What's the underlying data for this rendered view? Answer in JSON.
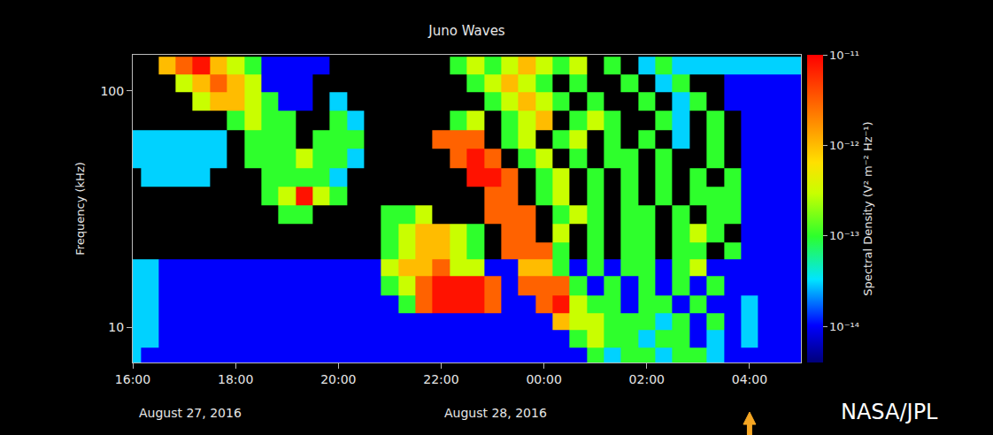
{
  "chart_data": {
    "type": "heatmap",
    "title": "Juno Waves",
    "y_label": "Frequency (kHz)",
    "colorbar_label": "Spectral Density (V² m⁻² Hz⁻¹)",
    "annotations": [
      "August 27, 2016",
      "August 28, 2016",
      "NASA/JPL"
    ],
    "log": true,
    "grid": false,
    "x": [
      "2016-08-27 16:00",
      "2016-08-27 16:20",
      "2016-08-27 16:40",
      "2016-08-27 17:00",
      "2016-08-27 17:20",
      "2016-08-27 17:40",
      "2016-08-27 18:00",
      "2016-08-27 18:20",
      "2016-08-27 18:40",
      "2016-08-27 19:00",
      "2016-08-27 19:20",
      "2016-08-27 19:40",
      "2016-08-27 20:00",
      "2016-08-27 20:20",
      "2016-08-27 20:40",
      "2016-08-27 21:00",
      "2016-08-27 21:20",
      "2016-08-27 21:40",
      "2016-08-27 22:00",
      "2016-08-27 22:20",
      "2016-08-27 22:40",
      "2016-08-27 23:00",
      "2016-08-27 23:20",
      "2016-08-27 23:40",
      "2016-08-28 00:00",
      "2016-08-28 00:20",
      "2016-08-28 00:40",
      "2016-08-28 01:00",
      "2016-08-28 01:20",
      "2016-08-28 01:40",
      "2016-08-28 02:00",
      "2016-08-28 02:20",
      "2016-08-28 02:40",
      "2016-08-28 03:00",
      "2016-08-28 03:20",
      "2016-08-28 03:40",
      "2016-08-28 04:00",
      "2016-08-28 04:20",
      "2016-08-28 04:40",
      "2016-08-28 05:00"
    ],
    "y": [
      7.5,
      9,
      10.5,
      12.5,
      15,
      18,
      21,
      25,
      30,
      36,
      43,
      52,
      62,
      75,
      90,
      108,
      128
    ],
    "cells": [
      [
        3e-14,
        1e-14,
        1e-14,
        1e-14,
        1e-14,
        1e-14,
        1e-14,
        1e-14,
        1e-14,
        1e-14,
        1e-14,
        1e-14,
        1e-14,
        1e-14,
        1e-14,
        1e-14,
        1e-14,
        1e-14,
        1e-14,
        1e-14,
        1e-14,
        1e-14,
        1e-14,
        1e-14,
        1e-14,
        1e-14,
        1e-14,
        1e-13,
        3e-14,
        1e-13,
        1e-13,
        3e-14,
        1e-13,
        1e-13,
        3e-14,
        1e-14,
        1e-14,
        1e-14,
        1e-14,
        1e-14
      ],
      [
        3e-14,
        3e-14,
        1e-14,
        1e-14,
        1e-14,
        1e-14,
        1e-14,
        1e-14,
        1e-14,
        1e-14,
        1e-14,
        1e-14,
        1e-14,
        1e-14,
        1e-14,
        1e-14,
        1e-14,
        1e-14,
        1e-14,
        1e-14,
        1e-14,
        1e-14,
        1e-14,
        1e-14,
        1e-14,
        1e-14,
        1e-13,
        3e-13,
        1e-13,
        1e-13,
        3e-14,
        1e-13,
        1e-13,
        1e-14,
        3e-14,
        1e-14,
        3e-14,
        1e-14,
        1e-14,
        1e-14
      ],
      [
        3e-14,
        3e-14,
        1e-14,
        1e-14,
        1e-14,
        1e-14,
        1e-14,
        1e-14,
        1e-14,
        1e-14,
        1e-14,
        1e-14,
        1e-14,
        1e-14,
        1e-14,
        1e-14,
        1e-14,
        1e-14,
        1e-14,
        1e-14,
        1e-14,
        1e-14,
        1e-14,
        1e-14,
        1e-14,
        1e-12,
        3e-13,
        3e-13,
        1e-13,
        1e-13,
        1e-13,
        3e-14,
        1e-13,
        1e-14,
        1e-13,
        1e-14,
        3e-14,
        1e-14,
        1e-14,
        1e-14
      ],
      [
        3e-14,
        3e-14,
        1e-14,
        1e-14,
        1e-14,
        1e-14,
        1e-14,
        1e-14,
        1e-14,
        1e-14,
        1e-14,
        1e-14,
        1e-14,
        1e-14,
        1e-14,
        1e-14,
        1e-13,
        3e-12,
        8e-12,
        8e-12,
        8e-12,
        3e-12,
        1e-14,
        1e-14,
        3e-12,
        8e-12,
        3e-13,
        1e-13,
        1e-13,
        1e-14,
        1e-13,
        1e-13,
        1e-14,
        1e-13,
        1e-14,
        1e-14,
        3e-14,
        1e-14,
        1e-14,
        1e-14
      ],
      [
        3e-14,
        3e-14,
        1e-14,
        1e-14,
        1e-14,
        1e-14,
        1e-14,
        1e-14,
        1e-14,
        1e-14,
        1e-14,
        1e-14,
        1e-14,
        1e-14,
        1e-14,
        1e-13,
        3e-13,
        3e-12,
        8e-12,
        8e-12,
        8e-12,
        3e-12,
        1e-14,
        3e-12,
        3e-12,
        3e-12,
        1e-13,
        1e-14,
        1e-13,
        1e-14,
        1e-13,
        1e-14,
        1e-13,
        1e-14,
        1e-13,
        1e-14,
        1e-14,
        1e-14,
        1e-14,
        1e-14
      ],
      [
        3e-14,
        3e-14,
        1e-14,
        1e-14,
        1e-14,
        1e-14,
        1e-14,
        1e-14,
        1e-14,
        1e-14,
        1e-14,
        1e-14,
        1e-14,
        1e-14,
        1e-14,
        3e-13,
        1e-12,
        1e-12,
        3e-12,
        3e-13,
        3e-13,
        1e-14,
        1e-14,
        1e-12,
        1e-12,
        1e-13,
        1e-14,
        1e-13,
        1e-14,
        1e-13,
        1e-13,
        1e-14,
        1e-13,
        3e-13,
        1e-14,
        1e-14,
        1e-14,
        1e-14,
        1e-14,
        1e-14
      ],
      [
        null,
        null,
        null,
        null,
        null,
        null,
        null,
        null,
        null,
        null,
        null,
        null,
        null,
        null,
        null,
        1e-13,
        3e-13,
        1e-12,
        1e-12,
        3e-13,
        1e-13,
        null,
        3e-12,
        3e-12,
        3e-12,
        1e-13,
        null,
        1e-13,
        null,
        1e-13,
        1e-13,
        null,
        1e-13,
        1e-13,
        null,
        1e-13,
        1e-14,
        1e-14,
        1e-14,
        1e-14
      ],
      [
        null,
        null,
        null,
        null,
        null,
        null,
        null,
        null,
        null,
        null,
        null,
        null,
        null,
        null,
        null,
        1e-13,
        3e-13,
        1e-12,
        1e-12,
        3e-13,
        1e-13,
        null,
        3e-12,
        3e-12,
        null,
        3e-13,
        null,
        1e-13,
        null,
        1e-13,
        1e-13,
        null,
        1e-13,
        3e-13,
        1e-13,
        null,
        1e-14,
        1e-14,
        1e-14,
        1e-14
      ],
      [
        null,
        null,
        null,
        null,
        null,
        null,
        null,
        null,
        null,
        1e-13,
        1e-13,
        null,
        null,
        null,
        null,
        1e-13,
        1e-13,
        3e-13,
        null,
        null,
        null,
        3e-12,
        3e-12,
        3e-12,
        null,
        1e-13,
        3e-13,
        1e-13,
        null,
        1e-13,
        1e-13,
        null,
        1e-13,
        null,
        1e-13,
        1e-13,
        1e-14,
        1e-14,
        1e-14,
        1e-14
      ],
      [
        null,
        null,
        null,
        null,
        null,
        null,
        null,
        null,
        1e-13,
        3e-13,
        8e-12,
        3e-13,
        1e-13,
        null,
        null,
        null,
        null,
        null,
        null,
        null,
        null,
        3e-12,
        3e-12,
        null,
        1e-13,
        3e-13,
        null,
        1e-13,
        null,
        1e-13,
        null,
        1e-13,
        null,
        1e-13,
        1e-13,
        1e-13,
        1e-14,
        1e-14,
        1e-14,
        1e-14
      ],
      [
        null,
        3e-14,
        3e-14,
        3e-14,
        3e-14,
        null,
        null,
        null,
        1e-13,
        1e-13,
        1e-13,
        1e-13,
        3e-14,
        null,
        null,
        null,
        null,
        null,
        null,
        null,
        8e-12,
        8e-12,
        3e-12,
        null,
        1e-13,
        3e-13,
        null,
        1e-13,
        null,
        1e-13,
        null,
        1e-13,
        null,
        1e-13,
        null,
        1e-13,
        1e-14,
        1e-14,
        1e-14,
        1e-14
      ],
      [
        3e-14,
        3e-14,
        3e-14,
        3e-14,
        3e-14,
        3e-14,
        null,
        1e-13,
        1e-13,
        1e-13,
        3e-13,
        1e-13,
        1e-13,
        3e-14,
        null,
        null,
        null,
        null,
        null,
        3e-12,
        8e-12,
        3e-12,
        null,
        1e-13,
        3e-13,
        null,
        1e-13,
        null,
        1e-13,
        1e-13,
        null,
        1e-13,
        null,
        null,
        1e-13,
        null,
        1e-14,
        1e-14,
        1e-14,
        1e-14
      ],
      [
        3e-14,
        3e-14,
        3e-14,
        3e-14,
        3e-14,
        3e-14,
        null,
        1e-13,
        1e-13,
        1e-13,
        null,
        1e-13,
        1e-13,
        1e-13,
        null,
        null,
        null,
        null,
        3e-12,
        3e-12,
        3e-12,
        null,
        1e-13,
        3e-13,
        null,
        1e-13,
        3e-13,
        null,
        1e-13,
        null,
        1e-13,
        null,
        3e-14,
        null,
        1e-13,
        null,
        1e-14,
        1e-14,
        1e-14,
        1e-14
      ],
      [
        null,
        null,
        null,
        null,
        null,
        null,
        1e-13,
        3e-13,
        1e-13,
        1e-13,
        null,
        null,
        1e-13,
        3e-14,
        null,
        null,
        null,
        null,
        null,
        1e-13,
        3e-13,
        null,
        1e-13,
        3e-13,
        1e-12,
        null,
        1e-13,
        3e-13,
        1e-13,
        null,
        null,
        1e-13,
        3e-14,
        null,
        1e-13,
        null,
        1e-14,
        1e-14,
        1e-14,
        1e-14
      ],
      [
        null,
        null,
        null,
        null,
        3e-13,
        1e-12,
        1e-12,
        3e-13,
        1e-13,
        1e-14,
        1e-14,
        null,
        3e-14,
        null,
        null,
        null,
        null,
        null,
        null,
        null,
        null,
        1e-13,
        3e-13,
        1e-12,
        3e-13,
        1e-13,
        null,
        1e-13,
        null,
        null,
        1e-13,
        null,
        3e-14,
        1e-13,
        null,
        1e-14,
        1e-14,
        1e-14,
        1e-14,
        1e-14
      ],
      [
        null,
        null,
        null,
        3e-13,
        1e-12,
        3e-12,
        1e-12,
        3e-13,
        1e-14,
        1e-14,
        1e-14,
        null,
        null,
        null,
        null,
        null,
        null,
        null,
        null,
        null,
        1e-13,
        3e-13,
        1e-12,
        3e-13,
        1e-13,
        null,
        1e-13,
        null,
        null,
        1e-13,
        null,
        3e-14,
        1e-13,
        null,
        null,
        1e-14,
        1e-14,
        1e-14,
        1e-14,
        1e-14
      ],
      [
        null,
        null,
        1e-12,
        3e-12,
        8e-12,
        1e-12,
        3e-13,
        1e-13,
        1e-14,
        1e-14,
        1e-14,
        1e-14,
        null,
        null,
        null,
        null,
        null,
        null,
        null,
        1e-13,
        3e-13,
        1e-13,
        3e-13,
        1e-12,
        3e-13,
        1e-13,
        3e-13,
        null,
        1e-13,
        null,
        3e-14,
        1e-13,
        3e-14,
        3e-14,
        3e-14,
        3e-14,
        3e-14,
        3e-14,
        3e-14,
        3e-14
      ]
    ],
    "xlim": [
      "2016-08-27 16:00",
      "2016-08-28 05:00"
    ],
    "xticks": [
      {
        "value": "2016-08-27 16:00",
        "label": "16:00"
      },
      {
        "value": "2016-08-27 18:00",
        "label": "18:00"
      },
      {
        "value": "2016-08-27 20:00",
        "label": "20:00"
      },
      {
        "value": "2016-08-27 22:00",
        "label": "22:00"
      },
      {
        "value": "2016-08-28 00:00",
        "label": "00:00"
      },
      {
        "value": "2016-08-28 02:00",
        "label": "02:00"
      },
      {
        "value": "2016-08-28 04:00",
        "label": "04:00"
      }
    ],
    "ylim": [
      7.1,
      142
    ],
    "yticks": [
      10,
      100
    ],
    "zlim": [
      4e-15,
      1e-11
    ],
    "zticks": [
      {
        "value": 1e-14,
        "label": "10⁻¹⁴"
      },
      {
        "value": 1e-13,
        "label": "10⁻¹³"
      },
      {
        "value": 1e-12,
        "label": "10⁻¹²"
      },
      {
        "value": 1e-11,
        "label": "10⁻¹¹"
      }
    ]
  }
}
